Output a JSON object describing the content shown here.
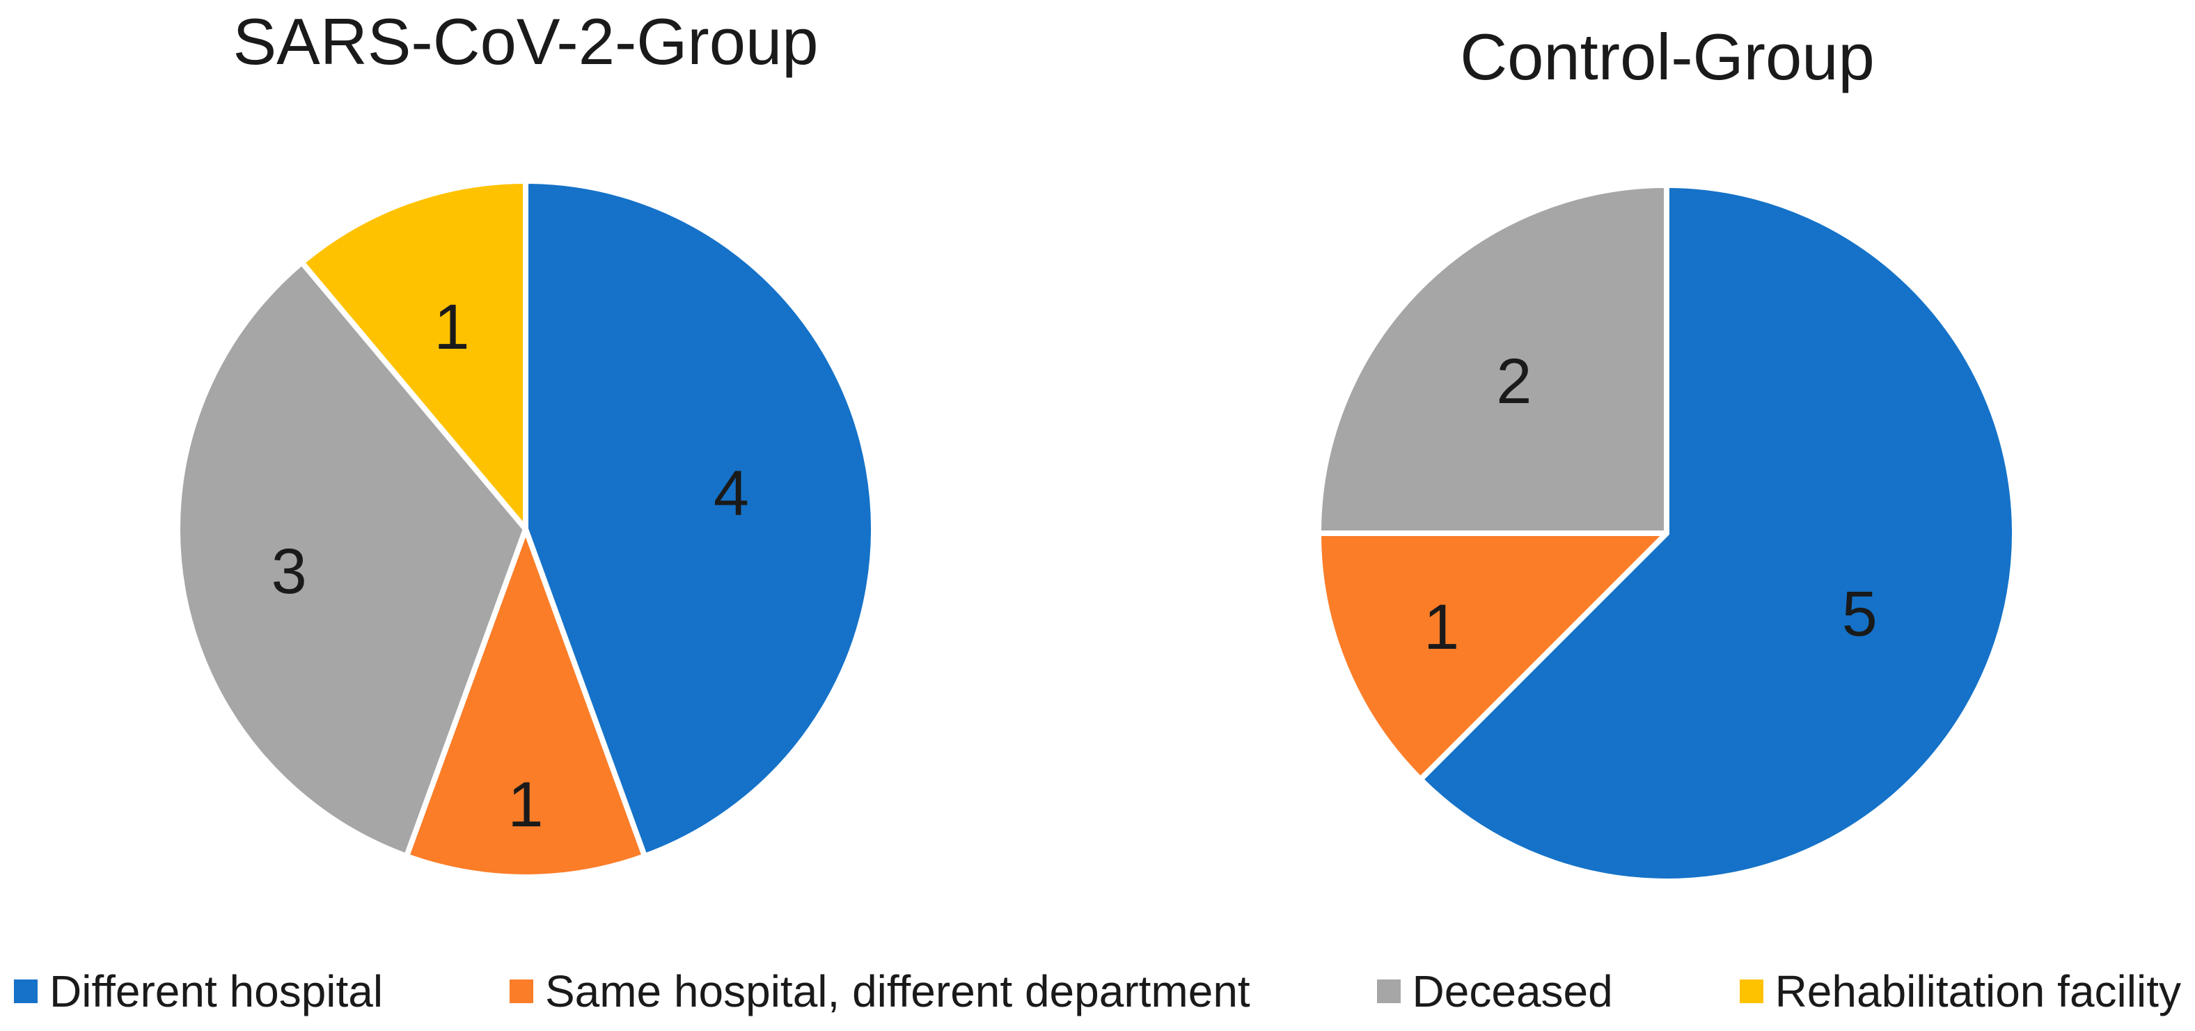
{
  "chart_data": [
    {
      "type": "pie",
      "title": "SARS-CoV-2-Group",
      "categories": [
        "Different hospital",
        "Same hospital, different department",
        "Deceased",
        "Rehabilitation facility"
      ],
      "values": [
        4,
        1,
        3,
        1
      ],
      "data_labels": [
        "4",
        "1",
        "3",
        "1"
      ],
      "colors": [
        "#1572C8",
        "#FB7D28",
        "#A6A6A6",
        "#FFC200"
      ],
      "start_angle_deg": 0,
      "direction": "clockwise",
      "label_radius_fractions": [
        0.6,
        0.79,
        0.69,
        0.62
      ],
      "legend_position": "bottom-shared"
    },
    {
      "type": "pie",
      "title": "Control-Group",
      "categories": [
        "Different hospital",
        "Same hospital, different department",
        "Deceased"
      ],
      "values": [
        5,
        1,
        2
      ],
      "data_labels": [
        "5",
        "1",
        "2"
      ],
      "colors": [
        "#1572C8",
        "#FB7D28",
        "#A6A6A6"
      ],
      "start_angle_deg": 0,
      "direction": "clockwise",
      "label_radius_fractions": [
        0.6,
        0.7,
        0.62
      ],
      "legend_position": "bottom-shared"
    }
  ],
  "legend": {
    "items": [
      {
        "label": "Different hospital",
        "color": "#1572C8"
      },
      {
        "label": "Same hospital, different department",
        "color": "#FB7D28"
      },
      {
        "label": "Deceased",
        "color": "#A6A6A6"
      },
      {
        "label": "Rehabilitation facility",
        "color": "#FFC200"
      }
    ]
  },
  "styles": {
    "background_color": "#FFFFFF",
    "slice_border_color": "#FFFFFF",
    "slice_label_color": "#1a1a1a",
    "title_color": "#1a1a1a",
    "legend_text_color": "#1a1a1a"
  }
}
